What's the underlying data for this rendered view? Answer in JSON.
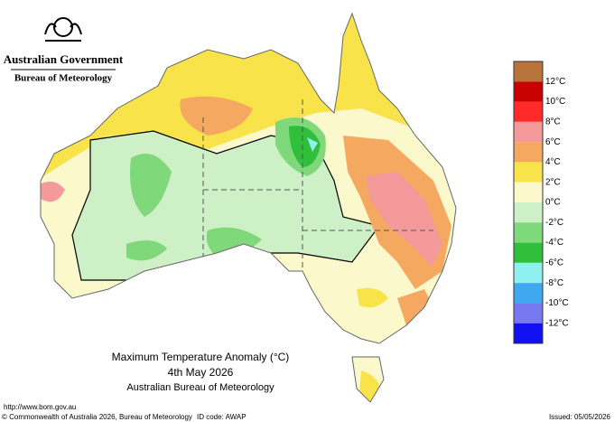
{
  "header": {
    "government": "Australian Government",
    "agency": "Bureau of Meteorology"
  },
  "map": {
    "title": "Maximum Temperature Anomaly (°C)",
    "date": "4th May 2026",
    "source": "Australian Bureau of Meteorology"
  },
  "legend": {
    "colors": [
      "#b8733a",
      "#c80000",
      "#ff2a2a",
      "#f49a9a",
      "#f4a860",
      "#f8e44a",
      "#fbf8cc",
      "#cdf0c6",
      "#7fd97a",
      "#2fbf3a",
      "#8ff0f0",
      "#3fa8f0",
      "#7878f0",
      "#1010f0"
    ],
    "labels": [
      "12°C",
      "10°C",
      "8°C",
      "6°C",
      "4°C",
      "2°C",
      "0°C",
      "-2°C",
      "-4°C",
      "-6°C",
      "-8°C",
      "-10°C",
      "-12°C"
    ]
  },
  "footer": {
    "url": "http://www.bom.gov.au",
    "copyright": "© Commonwealth of Australia 2026, Bureau of Meteorology",
    "id_code": "ID code: AWAP",
    "issued": "Issued: 05/05/2026"
  }
}
